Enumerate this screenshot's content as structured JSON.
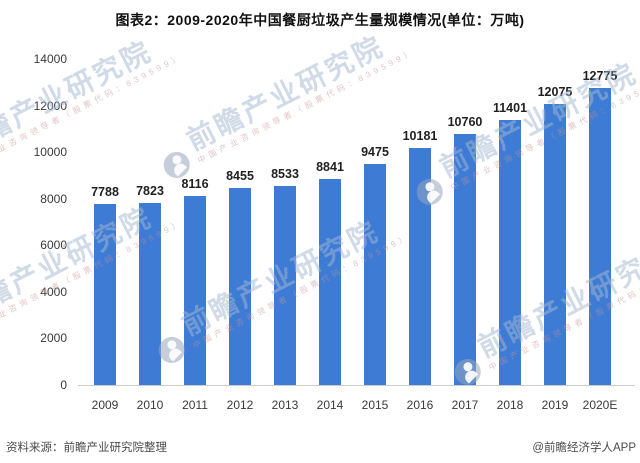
{
  "chart_data": {
    "type": "bar",
    "title": "图表2：2009-2020年中国餐厨垃圾产生量规模情况(单位：万吨)",
    "unit": "万吨",
    "categories": [
      "2009",
      "2010",
      "2011",
      "2012",
      "2013",
      "2014",
      "2015",
      "2016",
      "2017",
      "2018",
      "2019",
      "2020E"
    ],
    "values": [
      7788,
      7823,
      8116,
      8455,
      8533,
      8841,
      9475,
      10181,
      10760,
      11401,
      12075,
      12775
    ],
    "xlabel": "",
    "ylabel": "",
    "ylim": [
      0,
      14000
    ],
    "yticks": [
      0,
      2000,
      4000,
      6000,
      8000,
      10000,
      12000,
      14000
    ],
    "grid": false,
    "legend": "none",
    "bar_color": "#3E7BD5",
    "data_labels": true
  },
  "watermark": {
    "text": "前瞻产业研究院",
    "subtext": "中国产业咨询领导者（股票代码：839599）"
  },
  "footer": {
    "source": "资料来源：前瞻产业研究院整理",
    "credit": "@前瞻经济学人APP"
  }
}
